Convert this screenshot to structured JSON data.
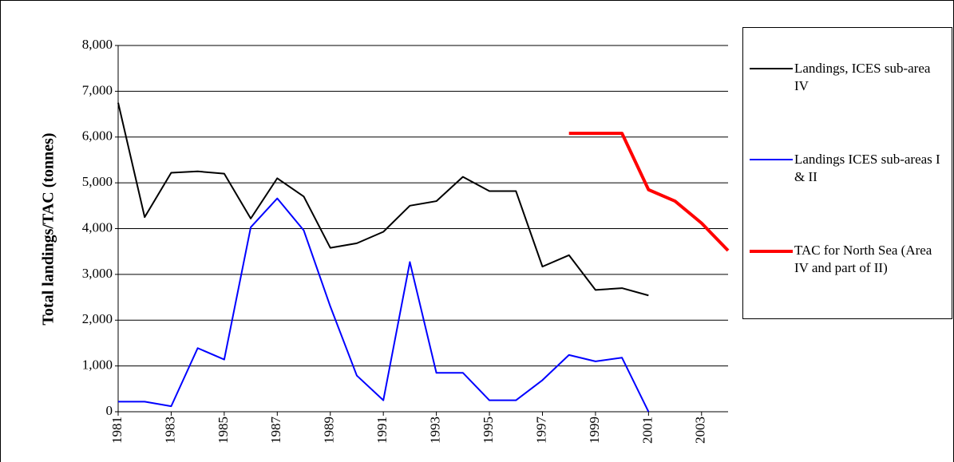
{
  "chart_data": {
    "type": "line",
    "ylabel": "Total landings/TAC (tonnes)",
    "x": [
      1981,
      1982,
      1983,
      1984,
      1985,
      1986,
      1987,
      1988,
      1989,
      1990,
      1991,
      1992,
      1993,
      1994,
      1995,
      1996,
      1997,
      1998,
      1999,
      2000,
      2001,
      2002,
      2003,
      2004
    ],
    "xlim": [
      1981,
      2004
    ],
    "xticks": [
      1981,
      1983,
      1985,
      1987,
      1989,
      1991,
      1993,
      1995,
      1997,
      1999,
      2001,
      2003
    ],
    "ylim": [
      0,
      8000
    ],
    "yticks": [
      0,
      {
        "value": 1000,
        "label": "1,000"
      },
      {
        "value": 2000,
        "label": "2,000"
      },
      {
        "value": 3000,
        "label": "3,000"
      },
      {
        "value": 4000,
        "label": "4,000"
      },
      {
        "value": 5000,
        "label": "5,000"
      },
      {
        "value": 6000,
        "label": "6,000"
      },
      {
        "value": 7000,
        "label": "7,000"
      },
      {
        "value": 8000,
        "label": "8,000"
      }
    ],
    "grid": true,
    "legend": "right",
    "series": [
      {
        "name": "Landings, ICES sub-area IV",
        "color": "#000000",
        "width": 2,
        "values": [
          6750,
          4250,
          5220,
          5250,
          5200,
          4220,
          5100,
          4700,
          3580,
          3680,
          3930,
          4500,
          4600,
          5130,
          4820,
          4820,
          3170,
          3420,
          2660,
          2700,
          2540,
          null,
          null,
          null
        ]
      },
      {
        "name": "Landings ICES sub-areas I & II",
        "color": "#0000ff",
        "width": 2,
        "values": [
          220,
          220,
          120,
          1390,
          1140,
          4030,
          4660,
          3960,
          2300,
          790,
          250,
          3270,
          850,
          850,
          250,
          250,
          690,
          1240,
          1100,
          1180,
          0,
          null,
          null,
          null
        ]
      },
      {
        "name": "TAC for North Sea (Area IV and part of II)",
        "color": "#ff0000",
        "width": 4,
        "values": [
          null,
          null,
          null,
          null,
          null,
          null,
          null,
          null,
          null,
          null,
          null,
          null,
          null,
          null,
          null,
          null,
          null,
          6080,
          6080,
          6080,
          4850,
          4600,
          4120,
          3520
        ]
      }
    ]
  }
}
